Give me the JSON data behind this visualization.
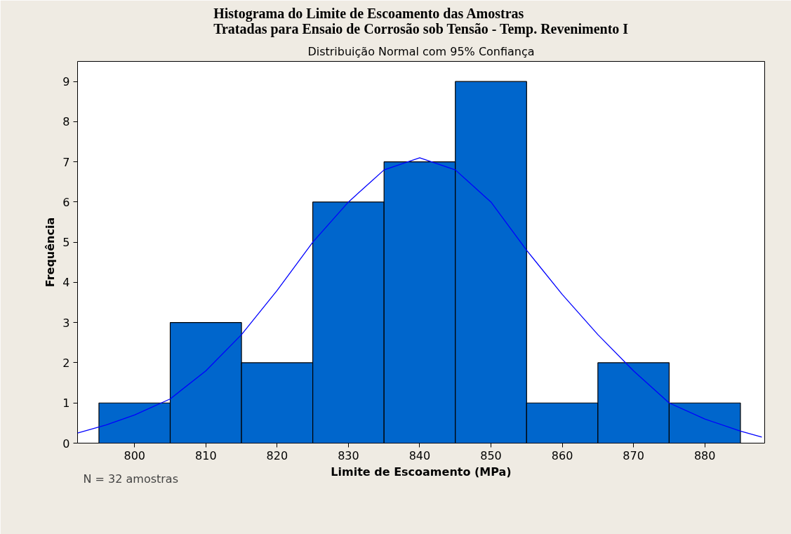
{
  "chart_data": {
    "type": "histogram",
    "title": "Histograma do Limite de Escoamento das Amostras\nTratadas para Ensaio de Corrosão sob Tensão - Temp. Revenimento I",
    "subtitle": "Distribuição Normal com 95% Confiança",
    "xlabel": "Limite de Escoamento (MPa)",
    "ylabel": "Frequência",
    "bins": [
      795,
      805,
      815,
      825,
      835,
      845,
      855,
      865,
      875,
      885
    ],
    "values": [
      1,
      3,
      2,
      6,
      7,
      9,
      1,
      2,
      1
    ],
    "color": "#0066cc",
    "series": [
      {
        "type": "line",
        "color": "#0000ff",
        "x": [
          792,
          796,
          800,
          805,
          810,
          815,
          820,
          825,
          830,
          835,
          840,
          845,
          850,
          855,
          860,
          865,
          870,
          875,
          880,
          885,
          888
        ],
        "values": [
          0.25,
          0.45,
          0.7,
          1.1,
          1.8,
          2.7,
          3.8,
          5.0,
          6.0,
          6.8,
          7.1,
          6.8,
          6.0,
          4.8,
          3.7,
          2.7,
          1.8,
          1.0,
          0.6,
          0.3,
          0.15
        ]
      }
    ],
    "xlim": [
      792,
      888.4
    ],
    "ylim": [
      0,
      9.5
    ],
    "xticks": [
      800,
      810,
      820,
      830,
      840,
      850,
      860,
      870,
      880
    ],
    "yticks": [
      0,
      1,
      2,
      3,
      4,
      5,
      6,
      7,
      8,
      9
    ],
    "annotations": [
      "N = 32 amostras"
    ]
  }
}
